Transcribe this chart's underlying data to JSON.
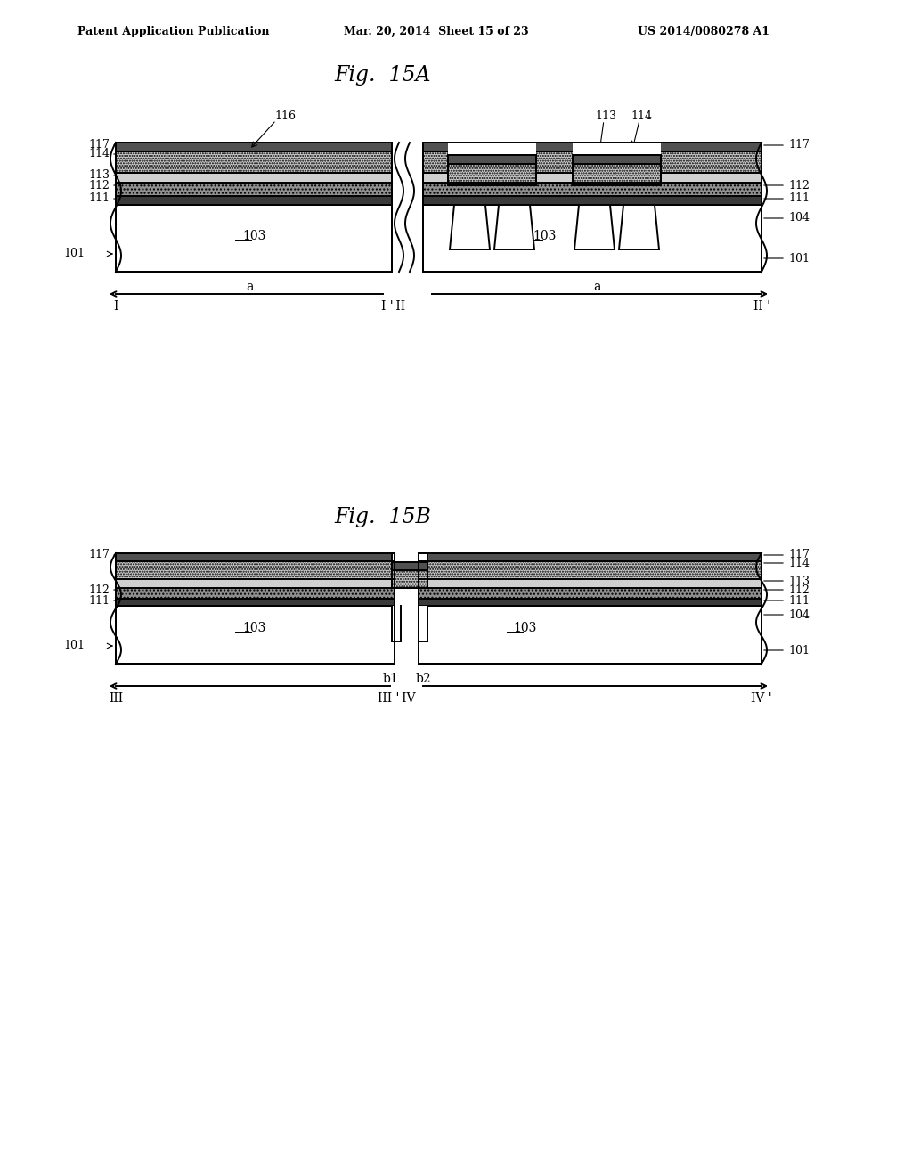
{
  "background_color": "#ffffff",
  "header_left": "Patent Application Publication",
  "header_mid": "Mar. 20, 2014  Sheet 15 of 23",
  "header_right": "US 2014/0080278 A1",
  "fig_title_A": "Fig.  15A",
  "fig_title_B": "Fig.  15B",
  "line_color": "#000000",
  "gray_light": "#d8d8d8",
  "gray_dot": "#c0c0c0",
  "gray_dark": "#505050",
  "gray_med": "#909090"
}
